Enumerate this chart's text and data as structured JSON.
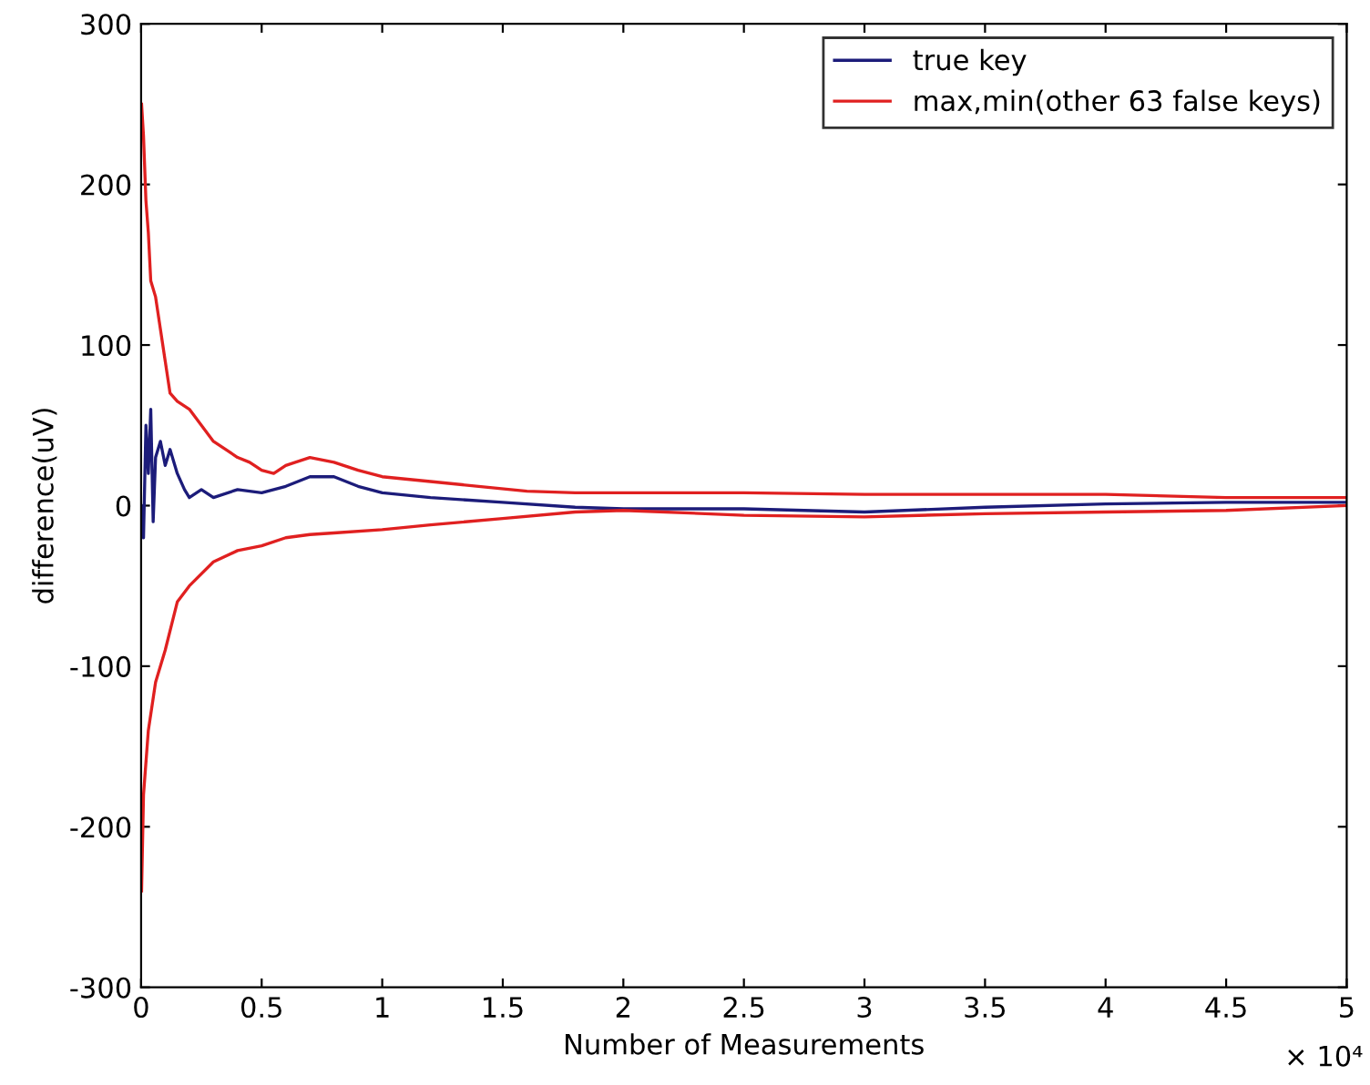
{
  "chart_data": {
    "type": "line",
    "xlabel": "Number of Measurements",
    "ylabel": "difference(uV)",
    "xlim": [
      0,
      5
    ],
    "xticks": [
      0,
      0.5,
      1,
      1.5,
      2,
      2.5,
      3,
      3.5,
      4,
      4.5,
      5
    ],
    "ylim": [
      -300,
      300
    ],
    "yticks": [
      -300,
      -200,
      -100,
      0,
      100,
      200,
      300
    ],
    "annotations": [
      "× 10⁴"
    ],
    "legend": "top right",
    "grid": false,
    "series": [
      {
        "name": "true key",
        "color": "#1c1c7a",
        "x": [
          0,
          0.01,
          0.02,
          0.03,
          0.04,
          0.05,
          0.06,
          0.08,
          0.1,
          0.12,
          0.15,
          0.18,
          0.2,
          0.25,
          0.3,
          0.4,
          0.5,
          0.6,
          0.7,
          0.8,
          0.9,
          1,
          1.2,
          1.5,
          1.8,
          2,
          2.5,
          3,
          3.5,
          4,
          4.5,
          5
        ],
        "values": [
          0,
          -20,
          50,
          20,
          60,
          -10,
          30,
          40,
          25,
          35,
          20,
          10,
          5,
          10,
          5,
          10,
          8,
          12,
          18,
          18,
          12,
          8,
          5,
          2,
          -1,
          -2,
          -2,
          -4,
          -1,
          1,
          2,
          2
        ]
      },
      {
        "name": "max,min(other 63 false keys)",
        "color": "#e02020",
        "x": [
          0.002,
          0.01,
          0.02,
          0.03,
          0.04,
          0.06,
          0.08,
          0.1,
          0.12,
          0.15,
          0.2,
          0.25,
          0.3,
          0.35,
          0.4,
          0.45,
          0.5,
          0.55,
          0.6,
          0.7,
          0.8,
          0.9,
          1,
          1.2,
          1.4,
          1.6,
          1.8,
          2,
          2.5,
          3,
          3.5,
          4,
          4.5,
          5
        ],
        "values": [
          250,
          230,
          190,
          170,
          140,
          130,
          110,
          90,
          70,
          65,
          60,
          50,
          40,
          35,
          30,
          27,
          22,
          20,
          25,
          30,
          27,
          22,
          18,
          15,
          12,
          9,
          8,
          8,
          8,
          7,
          7,
          7,
          5,
          5
        ]
      },
      {
        "color": "#e02020",
        "x": [
          0.002,
          0.01,
          0.03,
          0.06,
          0.1,
          0.15,
          0.2,
          0.3,
          0.4,
          0.5,
          0.6,
          0.7,
          0.8,
          1,
          1.2,
          1.5,
          1.8,
          2,
          2.5,
          3,
          3.5,
          4,
          4.5,
          5
        ],
        "values": [
          -240,
          -180,
          -140,
          -110,
          -90,
          -60,
          -50,
          -35,
          -28,
          -25,
          -20,
          -18,
          -17,
          -15,
          -12,
          -8,
          -4,
          -3,
          -6,
          -7,
          -5,
          -4,
          -3,
          0
        ]
      }
    ]
  }
}
